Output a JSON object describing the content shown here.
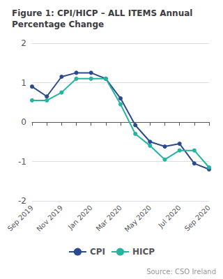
{
  "chart_data": {
    "type": "line",
    "title": "Figure 1: CPI/HICP – ALL ITEMS Annual\nPercentage Change",
    "categories": [
      "Sep 2019",
      null,
      "Nov 2019",
      null,
      "Jan 2020",
      null,
      "Mar 2020",
      null,
      "May 2020",
      null,
      "Jul 2020",
      null,
      "Sep 2020"
    ],
    "series": [
      {
        "name": "CPI",
        "color": "#2e4a8e",
        "marker": "circle",
        "values": [
          0.9,
          0.65,
          1.15,
          1.25,
          1.25,
          1.1,
          0.6,
          -0.08,
          -0.5,
          -0.62,
          -0.55,
          -1.05,
          -1.2
        ]
      },
      {
        "name": "HICP",
        "color": "#22b5a0",
        "marker": "circle",
        "values": [
          0.55,
          0.55,
          0.75,
          1.1,
          1.1,
          1.1,
          0.45,
          -0.3,
          -0.6,
          -0.95,
          -0.72,
          -0.72,
          -1.15
        ]
      }
    ],
    "ylim": [
      -2,
      2
    ],
    "yticks": [
      -2,
      -1,
      0,
      1,
      2
    ],
    "grid": true,
    "legend": "bottom",
    "annotations": [
      "Source: CSO Ireland"
    ]
  }
}
